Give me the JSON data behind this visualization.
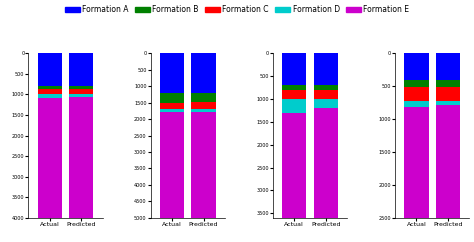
{
  "formations": [
    "Formation A",
    "Formation B",
    "Formation C",
    "Formation D",
    "Formation E"
  ],
  "colors": [
    "#0000FF",
    "#008000",
    "#FF0000",
    "#00CCCC",
    "#CC00CC"
  ],
  "groups": [
    {
      "actual": [
        800,
        80,
        120,
        100,
        2900
      ],
      "predicted": [
        800,
        80,
        120,
        60,
        2940
      ],
      "ylim": [
        0,
        4000
      ],
      "yticks": [
        0,
        500,
        1000,
        1500,
        2000,
        2500,
        3000,
        3500,
        4000
      ]
    },
    {
      "actual": [
        1200,
        300,
        200,
        100,
        3200
      ],
      "predicted": [
        1200,
        280,
        200,
        100,
        3220
      ],
      "ylim": [
        0,
        5000
      ],
      "yticks": [
        0,
        500,
        1000,
        1500,
        2000,
        2500,
        3000,
        3500,
        4000,
        4500,
        5000
      ]
    },
    {
      "actual": [
        700,
        100,
        200,
        300,
        2300
      ],
      "predicted": [
        700,
        100,
        200,
        200,
        2400
      ],
      "ylim": [
        0,
        3600
      ],
      "yticks": [
        0,
        500,
        1000,
        1500,
        2000,
        2500,
        3000,
        3500
      ]
    },
    {
      "actual": [
        400,
        120,
        200,
        100,
        1700
      ],
      "predicted": [
        400,
        120,
        200,
        60,
        1720
      ],
      "ylim": [
        0,
        2500
      ],
      "yticks": [
        0,
        500,
        1000,
        1500,
        2000,
        2500
      ]
    }
  ],
  "bar_width": 0.4,
  "legend_fontsize": 5.5,
  "tick_fontsize": 3.5,
  "label_fontsize": 4.5
}
